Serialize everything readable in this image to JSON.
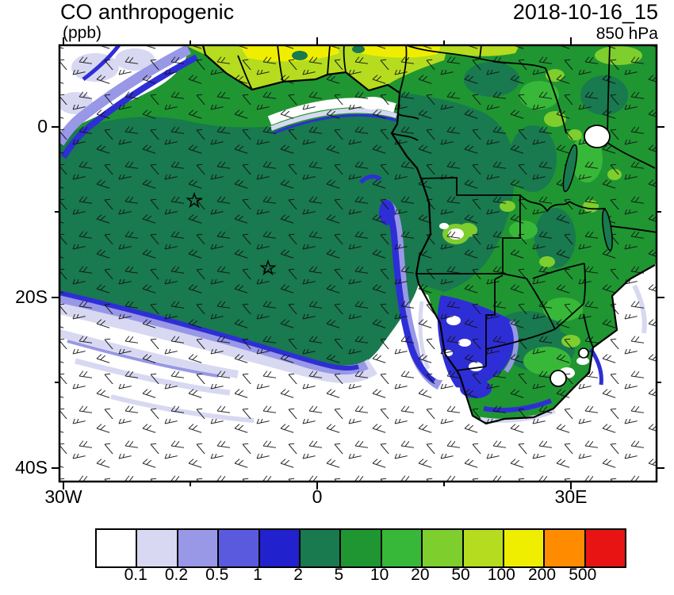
{
  "header": {
    "title": "CO anthropogenic",
    "units": "(ppb)",
    "datetime": "2018-10-16_15",
    "level": "850 hPa"
  },
  "chart_data": {
    "type": "heatmap",
    "title": "CO anthropogenic",
    "variable": "CO anthropogenic",
    "units": "ppb",
    "level": "850 hPa",
    "datetime": "2018-10-16_15",
    "projection": "cylindrical lat-lon, Africa / South Atlantic",
    "axes": {
      "lat_labels": [
        "0",
        "20S",
        "40S"
      ],
      "lon_labels": [
        "30W",
        "0",
        "30E"
      ],
      "lat_range_deg": [
        -41,
        10
      ],
      "lon_range_deg": [
        -30,
        40
      ],
      "minor_ticks": "every 5 degrees between labeled ticks"
    },
    "colorbar": {
      "orientation": "horizontal",
      "levels": [
        "0.1",
        "0.2",
        "0.5",
        "1",
        "2",
        "5",
        "10",
        "20",
        "50",
        "100",
        "200",
        "500"
      ],
      "colors": [
        "#FFFFFF",
        "#D8D8F2",
        "#9898E6",
        "#5A5ADF",
        "#2121CD",
        "#19794F",
        "#1F9632",
        "#38B838",
        "#7ECE2E",
        "#B5DC1F",
        "#F0EE00",
        "#FF8C00",
        "#E81414"
      ]
    },
    "overlays": [
      "wind-barbs",
      "coastlines",
      "country-borders",
      "star-markers"
    ],
    "markers": [
      {
        "symbol": "star",
        "lat_deg": -8.8,
        "lon_deg": -14.5
      },
      {
        "symbol": "star",
        "lat_deg": -16.7,
        "lon_deg": -5.8
      }
    ],
    "field_summary": "Broad 2-5 ppb plume (dark teal) over the Gulf of Guinea and tropical South Atlantic, 100-200 ppb (yellow) band along the West African coast near 5-9N, 5-20 ppb greens over central/southern Africa, 0.1-2 ppb blue/lavender fringes on the plume edges, and clean (<0.1 ppb, white) air south of about 22S"
  }
}
